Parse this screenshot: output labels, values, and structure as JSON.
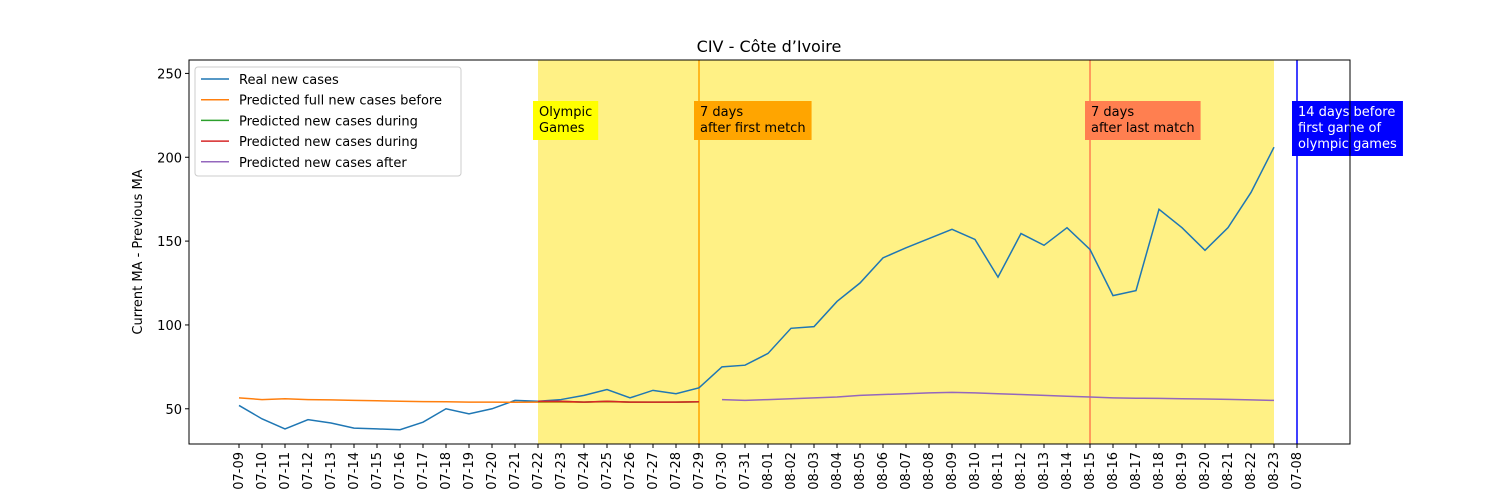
{
  "chart_data": {
    "type": "line",
    "title": "CIV - Côte d’Ivoire",
    "y_label": "Current MA - Previous MA",
    "categories": [
      "07-09",
      "07-10",
      "07-11",
      "07-12",
      "07-13",
      "07-14",
      "07-15",
      "07-16",
      "07-17",
      "07-18",
      "07-19",
      "07-20",
      "07-21",
      "07-22",
      "07-23",
      "07-24",
      "07-25",
      "07-26",
      "07-27",
      "07-28",
      "07-29",
      "07-30",
      "07-31",
      "08-01",
      "08-02",
      "08-03",
      "08-04",
      "08-05",
      "08-06",
      "08-07",
      "08-08",
      "08-09",
      "08-10",
      "08-11",
      "08-12",
      "08-13",
      "08-14",
      "08-15",
      "08-16",
      "08-17",
      "08-18",
      "08-19",
      "08-20",
      "08-21",
      "08-22",
      "08-23",
      "07-08"
    ],
    "series": [
      {
        "name": "Real new cases",
        "color": "#1f77b4",
        "values": [
          52,
          44,
          38,
          43.5,
          41.5,
          38.5,
          38,
          37.5,
          42,
          50,
          47,
          50,
          55,
          54.5,
          55.5,
          58,
          61.5,
          56.5,
          61,
          59,
          62.5,
          75,
          76,
          83,
          98,
          99,
          114,
          125,
          140,
          146,
          151.5,
          157,
          151,
          128.5,
          154.5,
          147.5,
          158,
          145,
          117.5,
          120.5,
          169,
          158,
          144.5,
          158,
          179,
          206,
          null
        ]
      },
      {
        "name": "Predicted full new cases before",
        "color": "#ff7f0e",
        "values": [
          56.5,
          55.5,
          56,
          55.5,
          55.3,
          55,
          54.8,
          54.5,
          54.3,
          54.2,
          54,
          54,
          53.9,
          54,
          54,
          54,
          54.2,
          54,
          53.9,
          54,
          54.2,
          null,
          null,
          null,
          null,
          null,
          null,
          null,
          null,
          null,
          null,
          null,
          null,
          null,
          null,
          null,
          null,
          null,
          null,
          null,
          null,
          null,
          null,
          null,
          null,
          null,
          null
        ]
      },
      {
        "name": "Predicted new cases during",
        "color": "#2ca02c",
        "values": [
          null,
          null,
          null,
          null,
          null,
          null,
          null,
          null,
          null,
          null,
          null,
          null,
          null,
          54.3,
          54.4,
          54,
          54.4,
          54,
          54,
          54,
          54.1,
          null,
          null,
          null,
          null,
          null,
          null,
          null,
          null,
          null,
          null,
          null,
          null,
          null,
          null,
          null,
          null,
          null,
          null,
          null,
          null,
          null,
          null,
          null,
          null,
          null,
          null
        ]
      },
      {
        "name": "Predicted new cases during",
        "color": "#d62728",
        "values": [
          null,
          null,
          null,
          null,
          null,
          null,
          null,
          null,
          null,
          null,
          null,
          null,
          null,
          54.5,
          54.5,
          54,
          54.5,
          54,
          54,
          54,
          54.2,
          null,
          null,
          null,
          null,
          null,
          null,
          null,
          null,
          null,
          null,
          null,
          null,
          null,
          null,
          null,
          null,
          null,
          null,
          null,
          null,
          null,
          null,
          null,
          null,
          null,
          null
        ]
      },
      {
        "name": "Predicted new cases after",
        "color": "#9467bd",
        "values": [
          null,
          null,
          null,
          null,
          null,
          null,
          null,
          null,
          null,
          null,
          null,
          null,
          null,
          null,
          null,
          null,
          null,
          null,
          null,
          null,
          null,
          55.5,
          55,
          55.5,
          56,
          56.5,
          57,
          58,
          58.5,
          59,
          59.5,
          59.8,
          59.5,
          59,
          58.5,
          58,
          57.5,
          57,
          56.5,
          56.3,
          56.2,
          56,
          55.8,
          55.6,
          55.3,
          55,
          null
        ]
      }
    ],
    "ylim": [
      29,
      258
    ],
    "yticks": [
      50,
      100,
      150,
      200,
      250
    ],
    "span": {
      "from": "07-22",
      "to": "08-23",
      "color": "#fff185"
    },
    "vlines": [
      {
        "at": "07-29",
        "color": "#ffa500"
      },
      {
        "at": "08-15",
        "color": "#ff7f50"
      },
      {
        "at": "07-08",
        "color": "#0000ff"
      }
    ],
    "annotations": [
      {
        "at": "07-22",
        "text": [
          "Olympic",
          "Games"
        ],
        "color": "#ffff00",
        "text_color": "#000000"
      },
      {
        "at": "07-29",
        "text": [
          "7 days",
          "after first metch"
        ],
        "color": "#ffa500",
        "text_color": "#000000"
      },
      {
        "at": "08-15",
        "text": [
          "7 days",
          "after last match"
        ],
        "color": "#ff7f50",
        "text_color": "#000000"
      },
      {
        "at": "07-08",
        "text": [
          "14 days before",
          "first game of",
          "olympic games"
        ],
        "color": "#0000ff",
        "text_color": "#ffffff"
      }
    ],
    "legend": "upper left"
  }
}
